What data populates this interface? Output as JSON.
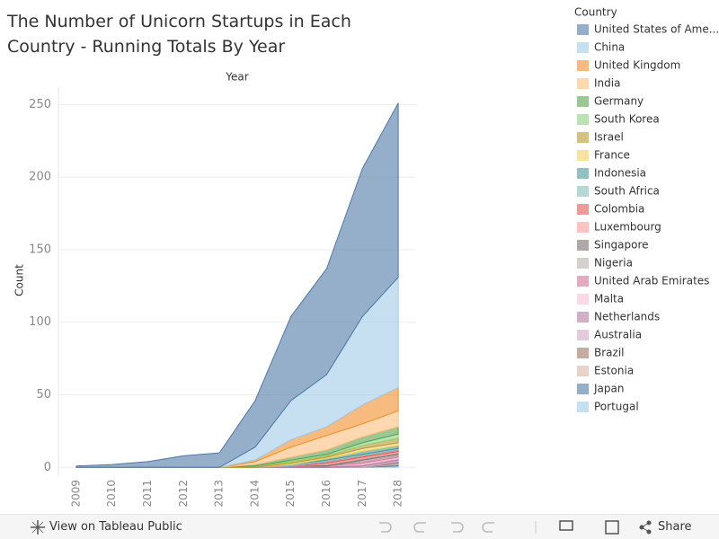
{
  "chart_data": {
    "type": "area",
    "title": "The Number of Unicorn Startups in Each Country - Running Totals By Year",
    "x_header": "Year",
    "y_label": "Count",
    "legend_title": "Country",
    "categories": [
      "2009",
      "2010",
      "2011",
      "2012",
      "2013",
      "2014",
      "2015",
      "2016",
      "2017",
      "2018"
    ],
    "ylim": [
      -6,
      262
    ],
    "yticks": [
      0,
      50,
      100,
      150,
      200,
      250
    ],
    "grid": true,
    "stacked": true,
    "series": [
      {
        "name": "United States of Ame...",
        "color": "#4e79a7",
        "values": [
          1,
          2,
          4,
          8,
          10,
          32,
          58,
          73,
          102,
          120
        ]
      },
      {
        "name": "China",
        "color": "#a0cbe8",
        "values": [
          0,
          0,
          0,
          0,
          0,
          9,
          27,
          36,
          61,
          76
        ]
      },
      {
        "name": "United Kingdom",
        "color": "#f28e2b",
        "values": [
          0,
          0,
          0,
          0,
          0,
          1,
          5,
          6,
          13,
          16
        ]
      },
      {
        "name": "India",
        "color": "#ffbe7d",
        "values": [
          0,
          0,
          0,
          0,
          0,
          2,
          7,
          10,
          9,
          11
        ]
      },
      {
        "name": "Germany",
        "color": "#59a14f",
        "values": [
          0,
          0,
          0,
          0,
          0,
          1,
          2,
          3,
          4,
          5
        ]
      },
      {
        "name": "South Korea",
        "color": "#8cd17d",
        "values": [
          0,
          0,
          0,
          0,
          0,
          0,
          1,
          1,
          2,
          3
        ]
      },
      {
        "name": "Israel",
        "color": "#b6992d",
        "values": [
          0,
          0,
          0,
          0,
          0,
          1,
          1,
          1,
          2,
          3
        ]
      },
      {
        "name": "France",
        "color": "#f1ce63",
        "values": [
          0,
          0,
          0,
          0,
          0,
          0,
          1,
          1,
          2,
          2
        ]
      },
      {
        "name": "Indonesia",
        "color": "#499894",
        "values": [
          0,
          0,
          0,
          0,
          0,
          0,
          0,
          1,
          2,
          2
        ]
      },
      {
        "name": "South Africa",
        "color": "#86bcb6",
        "values": [
          0,
          0,
          0,
          0,
          0,
          0,
          1,
          1,
          1,
          1
        ]
      },
      {
        "name": "Colombia",
        "color": "#e15759",
        "values": [
          0,
          0,
          0,
          0,
          0,
          0,
          0,
          1,
          1,
          1
        ]
      },
      {
        "name": "Luxembourg",
        "color": "#ff9d9a",
        "values": [
          0,
          0,
          0,
          0,
          0,
          0,
          0,
          1,
          1,
          1
        ]
      },
      {
        "name": "Singapore",
        "color": "#79706e",
        "values": [
          0,
          0,
          0,
          0,
          0,
          0,
          0,
          1,
          1,
          1
        ]
      },
      {
        "name": "Nigeria",
        "color": "#bab0ac",
        "values": [
          0,
          0,
          0,
          0,
          0,
          0,
          0,
          0,
          1,
          1
        ]
      },
      {
        "name": "United Arab Emirates",
        "color": "#d37295",
        "values": [
          0,
          0,
          0,
          0,
          0,
          0,
          0,
          0,
          1,
          1
        ]
      },
      {
        "name": "Malta",
        "color": "#fabfd2",
        "values": [
          0,
          0,
          0,
          0,
          0,
          0,
          0,
          0,
          1,
          1
        ]
      },
      {
        "name": "Netherlands",
        "color": "#b07aa1",
        "values": [
          0,
          0,
          0,
          0,
          0,
          0,
          1,
          1,
          1,
          1
        ]
      },
      {
        "name": "Australia",
        "color": "#d4a6c8",
        "values": [
          0,
          0,
          0,
          0,
          0,
          0,
          0,
          0,
          1,
          1
        ]
      },
      {
        "name": "Brazil",
        "color": "#9d7660",
        "values": [
          0,
          0,
          0,
          0,
          0,
          0,
          0,
          0,
          0,
          1
        ]
      },
      {
        "name": "Estonia",
        "color": "#d7b5a6",
        "values": [
          0,
          0,
          0,
          0,
          0,
          0,
          0,
          0,
          0,
          1
        ]
      },
      {
        "name": "Japan",
        "color": "#4e79a7",
        "values": [
          0,
          0,
          0,
          0,
          0,
          0,
          0,
          0,
          0,
          1
        ]
      },
      {
        "name": "Portugal",
        "color": "#a0cbe8",
        "values": [
          0,
          0,
          0,
          0,
          0,
          0,
          0,
          0,
          0,
          1
        ]
      }
    ]
  },
  "toolbar": {
    "view_link": "View on Tableau Public",
    "share": "Share"
  }
}
